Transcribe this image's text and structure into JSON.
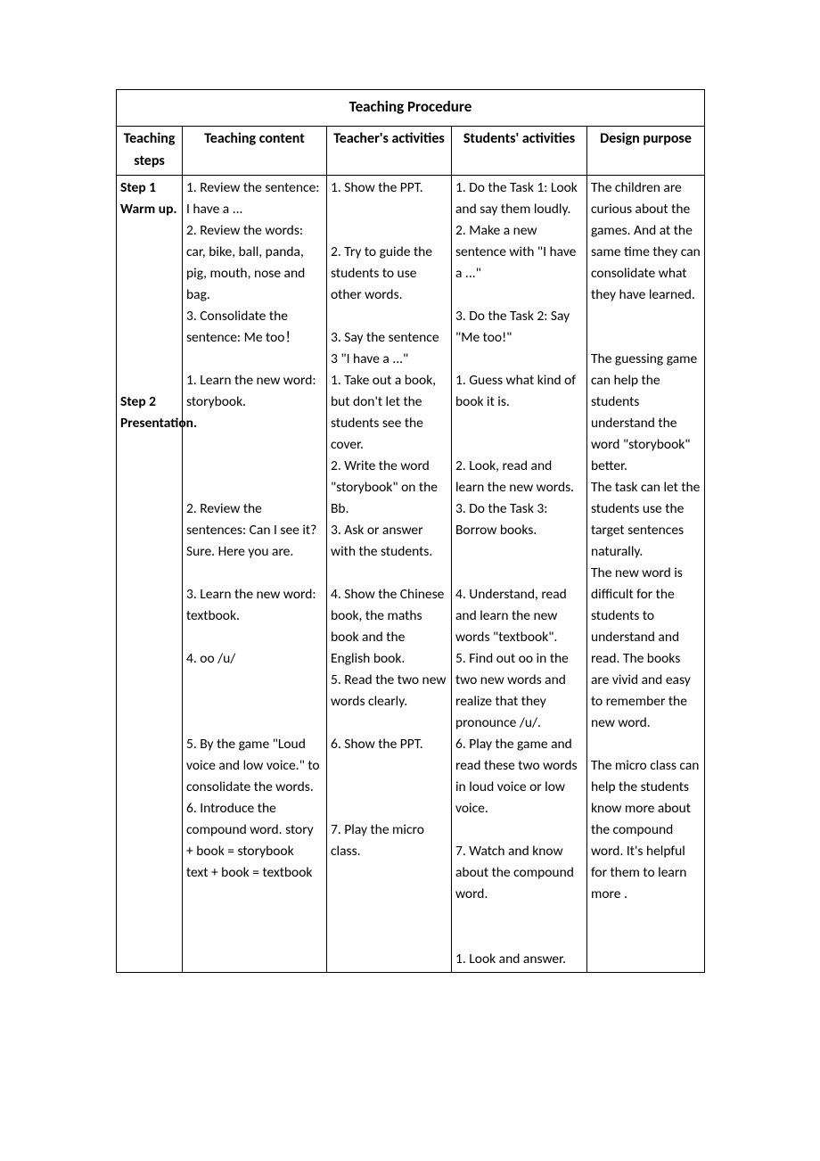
{
  "title": "Teaching     Procedure",
  "headers": {
    "c1": "Teaching steps",
    "c2": "Teaching content",
    "c3": "Teacher's activities",
    "c4": "Students' activities",
    "c5": "Design purpose"
  },
  "row1": {
    "step_a": "Step 1",
    "step_b": "Warm up.",
    "content": "1. Review the sentence: I have a ...\n2. Review the words: car, bike, ball, panda, pig, mouth, nose and bag.\n3. Consolidate the sentence: Me too！",
    "teacher_1": "1. Show the PPT.",
    "teacher_2": "2. Try to guide the students to use other words.",
    "teacher_3": "3. Say the sentence 3 \"I have a ...\"",
    "students_1": "1. Do the Task 1: Look and say them loudly.",
    "students_2": "2. Make a new sentence with \"I have a ...\"",
    "students_3": "3. Do the Task 2: Say \"Me too!\"",
    "purpose": "The children are curious about the games. And at the same time they can consolidate what they have learned."
  },
  "row2": {
    "step_a": "Step 2",
    "step_b": "Presentation.",
    "content_1": "1. Learn the new word: storybook.",
    "content_2": "2. Review the sentences: Can I see it? Sure. Here you are.",
    "content_3": "3. Learn the new word: textbook.",
    "content_4": "4. oo /u/",
    "content_5": "5. By the game \"Loud voice and low voice.\" to consolidate the words.",
    "content_6": "6. Introduce the compound   word. story + book = storybook",
    "content_7": "text + book = textbook",
    "teacher_1": "1. Take out a book, but don't let the students see the cover.",
    "teacher_2": "2. Write the word \"storybook\" on the Bb.",
    "teacher_3": "3. Ask or answer with the students.",
    "teacher_4": "4. Show the Chinese book, the maths book and the English book.",
    "teacher_5": "5. Read the two new words clearly.",
    "teacher_6": "6. Show the PPT.",
    "teacher_7": "7. Play the micro class.",
    "students_1": "1. Guess what kind of book it is.",
    "students_2": "2. Look, read and learn the new words.",
    "students_3": "3. Do the Task 3: Borrow books.",
    "students_4": "4. Understand, read and learn the new words \"textbook\".",
    "students_5": "5. Find out oo in the two new words and realize that they pronounce /u/.",
    "students_6": "6. Play the game and read these two words in loud voice or low voice.",
    "students_7": "7. Watch and know about the compound word.",
    "students_8": "1. Look and answer.",
    "purpose_1": "The guessing game can help the students understand the word \"storybook\" better.",
    "purpose_2": "The task can let the students use the target sentences naturally.",
    "purpose_3": "The new word is difficult for the students to understand and read. The books are vivid and easy to remember the new word.",
    "purpose_4": "The micro class can help the students know more about the compound word. It's helpful for them to learn more ."
  }
}
